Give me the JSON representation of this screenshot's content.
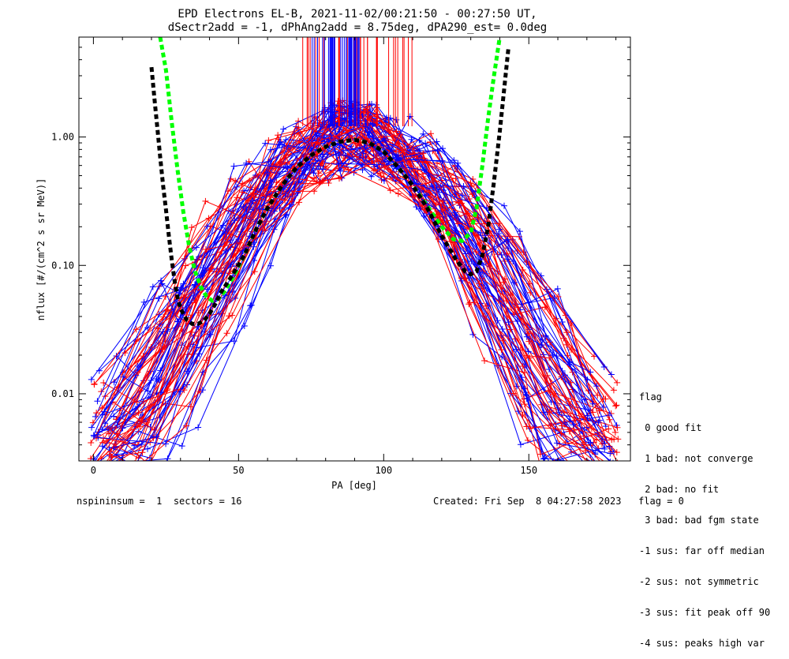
{
  "title_line1": "EPD Electrons EL-B, 2021-11-02/00:21:50 - 00:27:50 UT,",
  "title_line2": "dSectr2add = -1, dPhAng2add = 8.75deg, dPA290_est=   0.0deg",
  "legend": {
    "title": "flag",
    "items": [
      " 0 good fit",
      " 1 bad: not converge",
      " 2 bad: no fit",
      " 3 bad: bad fgm state",
      "-1 sus: far off median",
      "-2 sus: not symmetric",
      "-3 sus: fit peak off 90",
      "-4 sus: peaks high var"
    ]
  },
  "footer": {
    "left": "nspininsum =  1  sectors = 16",
    "right": "Created: Fri Sep  8 04:27:58 2023   flag = 0"
  },
  "colors": {
    "red": "#ff0000",
    "blue": "#0000ff",
    "green": "#00ff00",
    "black": "#000000"
  },
  "chart_data": {
    "type": "line",
    "xlabel": "PA [deg]",
    "ylabel": "nflux [#/(cm^2 s sr MeV)]",
    "xlim": [
      -5,
      185
    ],
    "ylim": [
      0.003,
      6.0
    ],
    "yscale": "log",
    "xticks": [
      0,
      50,
      100,
      150
    ],
    "yticks": [
      0.01,
      0.1,
      1.0
    ],
    "ytick_labels": [
      "0.01",
      "0.10",
      "1.00"
    ],
    "grid": false,
    "legend_position": "right-outside",
    "fit_curves": [
      {
        "color": "green",
        "style": "dashed",
        "x": [
          23,
          25,
          27,
          29,
          31,
          33,
          35,
          37,
          39,
          41,
          43,
          45,
          48,
          52,
          56,
          60,
          65,
          70,
          75,
          80,
          85,
          90,
          95,
          100,
          105,
          110,
          115,
          120,
          124,
          127,
          130,
          132,
          134,
          136,
          138,
          140
        ],
        "y": [
          6.0,
          3.3,
          1.3,
          0.55,
          0.26,
          0.14,
          0.09,
          0.068,
          0.057,
          0.053,
          0.055,
          0.062,
          0.08,
          0.12,
          0.19,
          0.28,
          0.42,
          0.58,
          0.72,
          0.84,
          0.92,
          0.95,
          0.9,
          0.77,
          0.58,
          0.42,
          0.29,
          0.2,
          0.16,
          0.155,
          0.18,
          0.28,
          0.6,
          1.4,
          3.0,
          6.0
        ]
      },
      {
        "color": "black",
        "style": "dashed",
        "x": [
          20,
          21,
          22,
          23,
          24,
          25,
          26,
          27,
          28,
          29,
          30,
          32,
          34,
          36,
          38,
          40,
          42,
          44,
          48,
          52,
          56,
          60,
          65,
          70,
          75,
          80,
          85,
          90,
          95,
          100,
          105,
          110,
          115,
          120,
          125,
          128,
          130,
          132,
          134,
          136,
          138,
          140,
          143
        ],
        "y": [
          3.5,
          2.0,
          1.2,
          0.7,
          0.42,
          0.27,
          0.17,
          0.11,
          0.075,
          0.056,
          0.046,
          0.038,
          0.035,
          0.035,
          0.037,
          0.042,
          0.05,
          0.062,
          0.085,
          0.12,
          0.19,
          0.28,
          0.42,
          0.58,
          0.72,
          0.84,
          0.92,
          0.95,
          0.9,
          0.77,
          0.58,
          0.42,
          0.28,
          0.17,
          0.11,
          0.09,
          0.085,
          0.09,
          0.12,
          0.2,
          0.45,
          1.1,
          5.0
        ]
      }
    ],
    "data_series": {
      "description": "many spin profiles, alternating red and blue, each drawn as line with + markers",
      "sample_pa": [
        5,
        20,
        35,
        50,
        65,
        80,
        90,
        100,
        115,
        130,
        145,
        160,
        175
      ],
      "count": 80
    },
    "top_markers": {
      "red_x_range": [
        72,
        110
      ],
      "blue_x_range": [
        73,
        92
      ]
    }
  }
}
